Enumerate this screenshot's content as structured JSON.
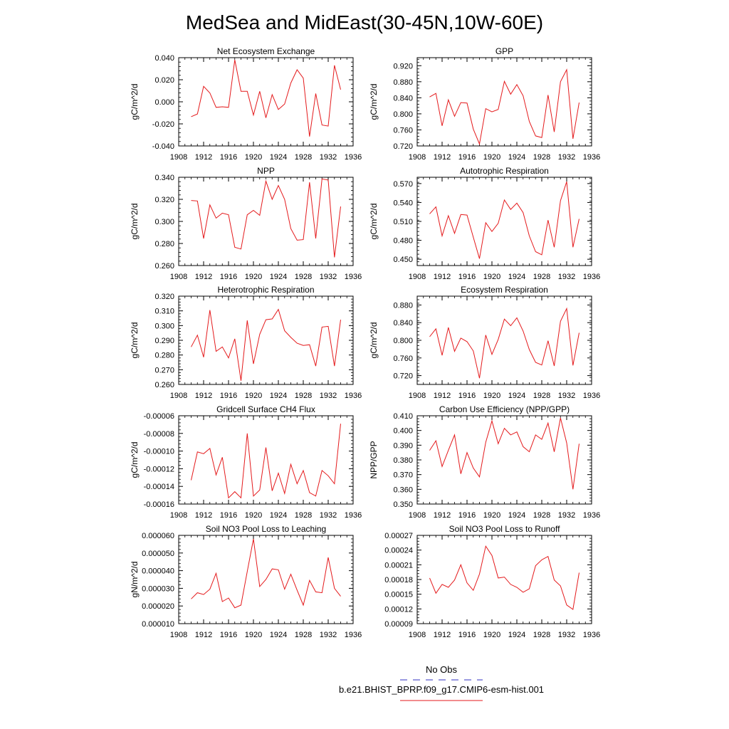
{
  "title": "MedSea and MidEast(30-45N,10W-60E)",
  "legend": [
    {
      "label": "No Obs",
      "color": "#5a5acd",
      "dash": "dashed"
    },
    {
      "label": "b.e21.BHIST_BPRP.f09_g17.CMIP6-esm-hist.001",
      "color": "#e41a1c",
      "dash": "solid"
    }
  ],
  "line_color": "#e41a1c",
  "chart_data": [
    {
      "type": "line",
      "title": "Net Ecosystem Exchange",
      "ylabel": "gC/m^2/d",
      "xlim": [
        1908,
        1936
      ],
      "xticks": [
        1908,
        1912,
        1916,
        1920,
        1924,
        1928,
        1932,
        1936
      ],
      "ylim": [
        -0.04,
        0.04
      ],
      "yticks": [
        -0.04,
        -0.02,
        0.0,
        0.02,
        0.04
      ],
      "ytick_labels": [
        "-0.040",
        "-0.020",
        "0.000",
        "0.020",
        "0.040"
      ],
      "x": [
        1910,
        1911,
        1912,
        1913,
        1914,
        1915,
        1916,
        1917,
        1918,
        1919,
        1920,
        1921,
        1922,
        1923,
        1924,
        1925,
        1926,
        1927,
        1928,
        1929,
        1930,
        1931,
        1932,
        1933,
        1934
      ],
      "y": [
        -0.0135,
        -0.011,
        0.014,
        0.008,
        -0.005,
        -0.0045,
        -0.005,
        0.038,
        0.0095,
        0.0095,
        -0.012,
        0.0095,
        -0.0145,
        0.0065,
        -0.007,
        -0.002,
        0.017,
        0.029,
        0.0215,
        -0.0315,
        0.0075,
        -0.021,
        -0.022,
        0.033,
        0.011
      ]
    },
    {
      "type": "line",
      "title": "GPP",
      "ylabel": "gC/m^2/d",
      "xlim": [
        1908,
        1936
      ],
      "xticks": [
        1908,
        1912,
        1916,
        1920,
        1924,
        1928,
        1932,
        1936
      ],
      "ylim": [
        0.72,
        0.94
      ],
      "yticks": [
        0.72,
        0.76,
        0.8,
        0.84,
        0.88,
        0.92
      ],
      "ytick_labels": [
        "0.720",
        "0.760",
        "0.800",
        "0.840",
        "0.880",
        "0.920"
      ],
      "x": [
        1910,
        1911,
        1912,
        1913,
        1914,
        1915,
        1916,
        1917,
        1918,
        1919,
        1920,
        1921,
        1922,
        1923,
        1924,
        1925,
        1926,
        1927,
        1928,
        1929,
        1930,
        1931,
        1932,
        1933,
        1934
      ],
      "y": [
        0.842,
        0.851,
        0.77,
        0.835,
        0.794,
        0.828,
        0.827,
        0.762,
        0.725,
        0.813,
        0.805,
        0.811,
        0.881,
        0.849,
        0.873,
        0.845,
        0.781,
        0.745,
        0.741,
        0.847,
        0.755,
        0.88,
        0.91,
        0.738,
        0.828
      ]
    },
    {
      "type": "line",
      "title": "NPP",
      "ylabel": "gC/m^2/d",
      "xlim": [
        1908,
        1936
      ],
      "xticks": [
        1908,
        1912,
        1916,
        1920,
        1924,
        1928,
        1932,
        1936
      ],
      "ylim": [
        0.26,
        0.34
      ],
      "yticks": [
        0.26,
        0.28,
        0.3,
        0.32,
        0.34
      ],
      "ytick_labels": [
        "0.260",
        "0.280",
        "0.300",
        "0.320",
        "0.340"
      ],
      "x": [
        1910,
        1911,
        1912,
        1913,
        1914,
        1915,
        1916,
        1917,
        1918,
        1919,
        1920,
        1921,
        1922,
        1923,
        1924,
        1925,
        1926,
        1927,
        1928,
        1929,
        1930,
        1931,
        1932,
        1933,
        1934
      ],
      "y": [
        0.319,
        0.3185,
        0.2845,
        0.315,
        0.303,
        0.3075,
        0.306,
        0.2765,
        0.275,
        0.306,
        0.31,
        0.3055,
        0.3365,
        0.32,
        0.3325,
        0.32,
        0.2935,
        0.283,
        0.2835,
        0.3355,
        0.2845,
        0.3385,
        0.3375,
        0.2675,
        0.3135
      ]
    },
    {
      "type": "line",
      "title": "Autotrophic Respiration",
      "ylabel": "gC/m^2/d",
      "xlim": [
        1908,
        1936
      ],
      "xticks": [
        1908,
        1912,
        1916,
        1920,
        1924,
        1928,
        1932,
        1936
      ],
      "ylim": [
        0.44,
        0.58
      ],
      "yticks": [
        0.45,
        0.48,
        0.51,
        0.54,
        0.57
      ],
      "ytick_labels": [
        "0.450",
        "0.480",
        "0.510",
        "0.540",
        "0.570"
      ],
      "x": [
        1910,
        1911,
        1912,
        1913,
        1914,
        1915,
        1916,
        1917,
        1918,
        1919,
        1920,
        1921,
        1922,
        1923,
        1924,
        1925,
        1926,
        1927,
        1928,
        1929,
        1930,
        1931,
        1932,
        1933,
        1934
      ],
      "y": [
        0.522,
        0.533,
        0.487,
        0.519,
        0.491,
        0.521,
        0.52,
        0.485,
        0.451,
        0.508,
        0.494,
        0.507,
        0.544,
        0.529,
        0.539,
        0.524,
        0.487,
        0.462,
        0.457,
        0.512,
        0.469,
        0.543,
        0.573,
        0.469,
        0.514
      ]
    },
    {
      "type": "line",
      "title": "Heterotrophic Respiration",
      "ylabel": "gC/m^2/d",
      "xlim": [
        1908,
        1936
      ],
      "xticks": [
        1908,
        1912,
        1916,
        1920,
        1924,
        1928,
        1932,
        1936
      ],
      "ylim": [
        0.26,
        0.32
      ],
      "yticks": [
        0.26,
        0.27,
        0.28,
        0.29,
        0.3,
        0.31,
        0.32
      ],
      "ytick_labels": [
        "0.260",
        "0.270",
        "0.280",
        "0.290",
        "0.300",
        "0.310",
        "0.320"
      ],
      "x": [
        1910,
        1911,
        1912,
        1913,
        1914,
        1915,
        1916,
        1917,
        1918,
        1919,
        1920,
        1921,
        1922,
        1923,
        1924,
        1925,
        1926,
        1927,
        1928,
        1929,
        1930,
        1931,
        1932,
        1933,
        1934
      ],
      "y": [
        0.2855,
        0.2935,
        0.2785,
        0.3105,
        0.2825,
        0.2855,
        0.278,
        0.291,
        0.2625,
        0.3035,
        0.274,
        0.294,
        0.304,
        0.3045,
        0.311,
        0.2965,
        0.292,
        0.288,
        0.2865,
        0.287,
        0.2725,
        0.299,
        0.2995,
        0.2725,
        0.304
      ]
    },
    {
      "type": "line",
      "title": "Ecosystem Respiration",
      "ylabel": "gC/m^2/d",
      "xlim": [
        1908,
        1936
      ],
      "xticks": [
        1908,
        1912,
        1916,
        1920,
        1924,
        1928,
        1932,
        1936
      ],
      "ylim": [
        0.7,
        0.9
      ],
      "yticks": [
        0.72,
        0.76,
        0.8,
        0.84,
        0.88
      ],
      "ytick_labels": [
        "0.720",
        "0.760",
        "0.800",
        "0.840",
        "0.880"
      ],
      "x": [
        1910,
        1911,
        1912,
        1913,
        1914,
        1915,
        1916,
        1917,
        1918,
        1919,
        1920,
        1921,
        1922,
        1923,
        1924,
        1925,
        1926,
        1927,
        1928,
        1929,
        1930,
        1931,
        1932,
        1933,
        1934
      ],
      "y": [
        0.808,
        0.826,
        0.766,
        0.829,
        0.775,
        0.805,
        0.797,
        0.776,
        0.714,
        0.812,
        0.768,
        0.802,
        0.848,
        0.833,
        0.851,
        0.821,
        0.779,
        0.75,
        0.744,
        0.799,
        0.742,
        0.843,
        0.872,
        0.743,
        0.817
      ]
    },
    {
      "type": "line",
      "title": "Gridcell Surface CH4 Flux",
      "ylabel": "gC/m^2/d",
      "xlim": [
        1908,
        1936
      ],
      "xticks": [
        1908,
        1912,
        1916,
        1920,
        1924,
        1928,
        1932,
        1936
      ],
      "ylim": [
        -0.00016,
        -6e-05
      ],
      "yticks": [
        -0.00016,
        -0.00014,
        -0.00012,
        -0.0001,
        -8e-05,
        -6e-05
      ],
      "ytick_labels": [
        "-0.00016",
        "-0.00014",
        "-0.00012",
        "-0.00010",
        "-0.00008",
        "-0.00006"
      ],
      "x": [
        1910,
        1911,
        1912,
        1913,
        1914,
        1915,
        1916,
        1917,
        1918,
        1919,
        1920,
        1921,
        1922,
        1923,
        1924,
        1925,
        1926,
        1927,
        1928,
        1929,
        1930,
        1931,
        1932,
        1933,
        1934
      ],
      "y": [
        -0.000133,
        -0.000101,
        -0.000103,
        -9.7e-05,
        -0.000127,
        -0.000107,
        -0.000153,
        -0.000146,
        -0.000153,
        -8e-05,
        -0.000151,
        -0.000144,
        -9.6e-05,
        -0.000145,
        -0.000125,
        -0.000148,
        -0.000115,
        -0.000137,
        -0.000122,
        -0.000147,
        -0.000151,
        -0.000122,
        -0.000128,
        -0.000137,
        -6.9e-05
      ]
    },
    {
      "type": "line",
      "title": "Carbon Use Efficiency (NPP/GPP)",
      "ylabel": "NPP/GPP",
      "xlim": [
        1908,
        1936
      ],
      "xticks": [
        1908,
        1912,
        1916,
        1920,
        1924,
        1928,
        1932,
        1936
      ],
      "ylim": [
        0.35,
        0.41
      ],
      "yticks": [
        0.35,
        0.36,
        0.37,
        0.38,
        0.39,
        0.4,
        0.41
      ],
      "ytick_labels": [
        "0.350",
        "0.360",
        "0.370",
        "0.380",
        "0.390",
        "0.400",
        "0.410"
      ],
      "x": [
        1910,
        1911,
        1912,
        1913,
        1914,
        1915,
        1916,
        1917,
        1918,
        1919,
        1920,
        1921,
        1922,
        1923,
        1924,
        1925,
        1926,
        1927,
        1928,
        1929,
        1930,
        1931,
        1932,
        1933,
        1934
      ],
      "y": [
        0.3865,
        0.393,
        0.3755,
        0.3865,
        0.397,
        0.3705,
        0.385,
        0.3745,
        0.3685,
        0.392,
        0.4065,
        0.391,
        0.4015,
        0.397,
        0.399,
        0.389,
        0.3855,
        0.397,
        0.394,
        0.405,
        0.3855,
        0.4085,
        0.3915,
        0.36,
        0.391
      ]
    },
    {
      "type": "line",
      "title": "Soil NO3 Pool Loss to Leaching",
      "ylabel": "gN/m^2/d",
      "xlim": [
        1908,
        1936
      ],
      "xticks": [
        1908,
        1912,
        1916,
        1920,
        1924,
        1928,
        1932,
        1936
      ],
      "ylim": [
        1e-05,
        6e-05
      ],
      "yticks": [
        1e-05,
        2e-05,
        3e-05,
        4e-05,
        5e-05,
        6e-05
      ],
      "ytick_labels": [
        "0.000010",
        "0.000020",
        "0.000030",
        "0.000040",
        "0.000050",
        "0.000060"
      ],
      "x": [
        1910,
        1911,
        1912,
        1913,
        1914,
        1915,
        1916,
        1917,
        1918,
        1919,
        1920,
        1921,
        1922,
        1923,
        1924,
        1925,
        1926,
        1927,
        1928,
        1929,
        1930,
        1931,
        1932,
        1933,
        1934
      ],
      "y": [
        2.4e-05,
        2.75e-05,
        2.65e-05,
        2.95e-05,
        3.85e-05,
        2.25e-05,
        2.45e-05,
        1.9e-05,
        2.05e-05,
        3.95e-05,
        5.8e-05,
        3.1e-05,
        3.5e-05,
        4.1e-05,
        4.05e-05,
        2.95e-05,
        3.8e-05,
        2.9e-05,
        2.05e-05,
        3.45e-05,
        2.8e-05,
        2.75e-05,
        4.75e-05,
        3e-05,
        2.55e-05
      ]
    },
    {
      "type": "line",
      "title": "Soil NO3 Pool Loss to Runoff",
      "ylabel": "",
      "xlim": [
        1908,
        1936
      ],
      "xticks": [
        1908,
        1912,
        1916,
        1920,
        1924,
        1928,
        1932,
        1936
      ],
      "ylim": [
        9e-05,
        0.00027
      ],
      "yticks": [
        9e-05,
        0.00012,
        0.00015,
        0.00018,
        0.00021,
        0.00024,
        0.00027
      ],
      "ytick_labels": [
        "0.00009",
        "0.00012",
        "0.00015",
        "0.00018",
        "0.00021",
        "0.00024",
        "0.00027"
      ],
      "x": [
        1910,
        1911,
        1912,
        1913,
        1914,
        1915,
        1916,
        1917,
        1918,
        1919,
        1920,
        1921,
        1922,
        1923,
        1924,
        1925,
        1926,
        1927,
        1928,
        1929,
        1930,
        1931,
        1932,
        1933,
        1934
      ],
      "y": [
        0.000183,
        0.000152,
        0.00017,
        0.000164,
        0.000179,
        0.00021,
        0.000173,
        0.000158,
        0.000191,
        0.000248,
        0.000229,
        0.000183,
        0.000185,
        0.00017,
        0.000164,
        0.000154,
        0.000161,
        0.000208,
        0.00022,
        0.000227,
        0.000179,
        0.000167,
        0.000128,
        0.000119,
        0.000194
      ]
    }
  ]
}
